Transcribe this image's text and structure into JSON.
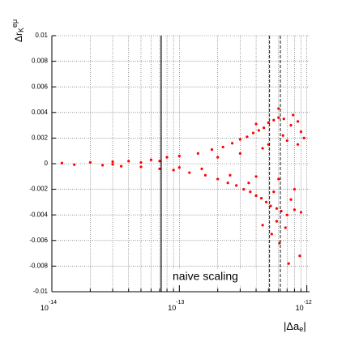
{
  "chart_data": {
    "type": "scatter",
    "y_label": {
      "text": "Δr",
      "sub": "K",
      "sup": "eμ"
    },
    "x_label": {
      "text": "|Δa",
      "sub": "e",
      "suffix": "|"
    },
    "annotation": "naive scaling",
    "log_x": true,
    "grid": true,
    "color": "#ff0000",
    "xlim": [
      1e-14,
      1.05e-12
    ],
    "ylim": [
      -0.01,
      0.01
    ],
    "xticks": [
      {
        "value": 1e-14,
        "label": "10",
        "exponent": "-14"
      },
      {
        "value": 1e-13,
        "label": "10",
        "exponent": "-13"
      },
      {
        "value": 1e-12,
        "label": "10",
        "exponent": "-12"
      }
    ],
    "xminorticks": [
      2e-14,
      3e-14,
      4e-14,
      5e-14,
      6e-14,
      7e-14,
      8e-14,
      9e-14,
      2e-13,
      3e-13,
      4e-13,
      5e-13,
      6e-13,
      7e-13,
      8e-13,
      9e-13
    ],
    "yticks": [
      0.01,
      0.008,
      0.006,
      0.004,
      0.002,
      0,
      -0.002,
      -0.004,
      -0.006,
      -0.008,
      -0.01
    ],
    "vlines": [
      {
        "x": 7.2e-14,
        "style": "solid"
      },
      {
        "x": 5.1e-13,
        "style": "dashed"
      },
      {
        "x": 6.2e-13,
        "style": "dashed"
      }
    ],
    "x": [
      1.2e-14,
      1.5e-14,
      2e-14,
      2.5e-14,
      3e-14,
      3.5e-14,
      4e-14,
      5e-14,
      6e-14,
      7e-14,
      8e-14,
      9e-14,
      1e-13,
      1.2e-13,
      1.4e-13,
      1.6e-13,
      1.8e-13,
      2e-13,
      2.2e-13,
      2.4e-13,
      2.6e-13,
      2.8e-13,
      3e-13,
      3.2e-13,
      3.4e-13,
      3.6e-13,
      3.8e-13,
      4e-13,
      4.2e-13,
      4.4e-13,
      4.6e-13,
      4.8e-13,
      5e-13,
      5.2e-13,
      5.5e-13,
      5.8e-13,
      6e-13,
      6.3e-13,
      6.6e-13,
      7e-13,
      7.5e-13,
      8e-13,
      8.5e-13,
      9e-13,
      9.5e-13,
      5.3e-13,
      6.1e-13,
      7.2e-13,
      8.8e-13,
      4.5e-13,
      3e-13,
      4e-13,
      5e-13,
      6e-13,
      7e-13,
      8e-13,
      2e-13,
      1.5e-13,
      9e-13,
      3.5e-13,
      4.5e-13,
      5.5e-13,
      6.5e-13,
      7.5e-13,
      8.5e-13,
      2.5e-13,
      1e-13,
      5e-14,
      3e-14,
      7e-14,
      4e-13,
      6e-13,
      7.8e-13,
      5.8e-13,
      6.8e-13
    ],
    "values": [
      5e-05,
      -8e-05,
      0.0001,
      -0.00012,
      0.00015,
      -0.0002,
      0.0002,
      -0.00025,
      0.0003,
      -0.0004,
      0.0005,
      -0.0005,
      0.0006,
      -0.0007,
      0.0008,
      -0.0009,
      0.0011,
      -0.0012,
      0.0013,
      -0.0015,
      0.0016,
      -0.0017,
      0.0019,
      -0.002,
      0.0021,
      -0.0022,
      0.0024,
      -0.0025,
      0.0026,
      -0.0027,
      0.0028,
      -0.003,
      0.0032,
      -0.0033,
      0.0034,
      -0.0035,
      0.0036,
      -0.0037,
      0.0035,
      -0.004,
      0.003,
      -0.0036,
      0.0033,
      -0.0038,
      0.002,
      -0.0055,
      -0.0062,
      -0.0078,
      -0.0072,
      -0.0048,
      0.0008,
      -0.001,
      0.0015,
      -0.0012,
      0.0018,
      -0.002,
      0.0005,
      -0.0004,
      0.0025,
      -0.0015,
      0.0012,
      -0.0022,
      0.0022,
      -0.0028,
      0.0015,
      -0.0009,
      -0.0003,
      0.0001,
      -5e-05,
      0.0002,
      0.0031,
      0.0043,
      0.0038,
      -0.0045,
      -0.005
    ]
  }
}
